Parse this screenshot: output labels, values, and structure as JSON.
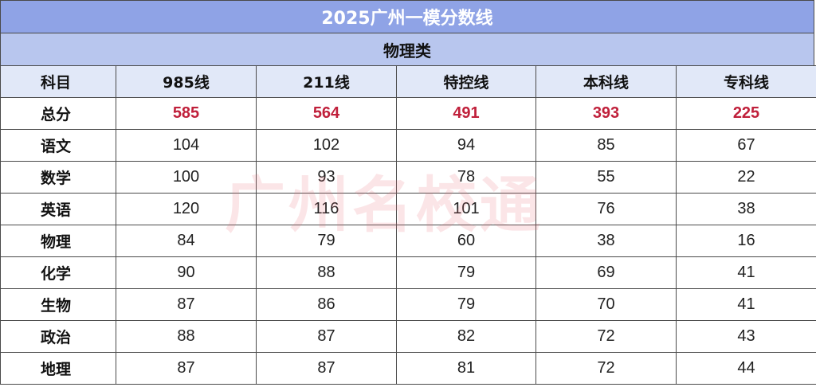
{
  "title": "2025广州一模分数线",
  "subtitle": "物理类",
  "columns": [
    "科目",
    "985线",
    "211线",
    "特控线",
    "本科线",
    "专科线"
  ],
  "rows": [
    {
      "subject": "总分",
      "values": [
        "585",
        "564",
        "491",
        "393",
        "225"
      ]
    },
    {
      "subject": "语文",
      "values": [
        "104",
        "102",
        "94",
        "85",
        "67"
      ]
    },
    {
      "subject": "数学",
      "values": [
        "100",
        "93",
        "78",
        "55",
        "22"
      ]
    },
    {
      "subject": "英语",
      "values": [
        "120",
        "116",
        "101",
        "76",
        "38"
      ]
    },
    {
      "subject": "物理",
      "values": [
        "84",
        "79",
        "60",
        "38",
        "16"
      ]
    },
    {
      "subject": "化学",
      "values": [
        "90",
        "88",
        "79",
        "69",
        "41"
      ]
    },
    {
      "subject": "生物",
      "values": [
        "87",
        "86",
        "79",
        "70",
        "41"
      ]
    },
    {
      "subject": "政治",
      "values": [
        "88",
        "87",
        "82",
        "72",
        "43"
      ]
    },
    {
      "subject": "地理",
      "values": [
        "87",
        "87",
        "81",
        "72",
        "44"
      ]
    }
  ],
  "watermark": "广州名校通",
  "colors": {
    "title_bg": "#8fa3e6",
    "subtitle_bg": "#b8c6ee",
    "header_bg": "#e1e8f8",
    "total_accent": "#c0203b"
  }
}
